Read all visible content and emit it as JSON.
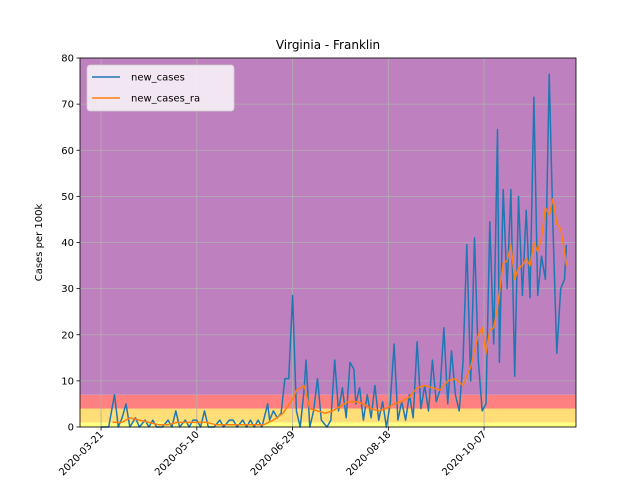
{
  "chart_data": {
    "type": "line",
    "title": "Virginia - Franklin",
    "xlabel": "",
    "ylabel": "Cases per 100k",
    "x_start": "2020-03-10",
    "x_end": "2020-11-24",
    "xlim": [
      "2020-03-10",
      "2020-11-24"
    ],
    "ylim": [
      0,
      80
    ],
    "grid": true,
    "legend_position": "top-left",
    "y_ticks": [
      "0",
      "10",
      "20",
      "30",
      "40",
      "50",
      "60",
      "70",
      "80"
    ],
    "x_ticks": [
      {
        "date": "2020-03-21",
        "label": "2020-03-21"
      },
      {
        "date": "2020-05-10",
        "label": "2020-05-10"
      },
      {
        "date": "2020-06-29",
        "label": "2020-06-29"
      },
      {
        "date": "2020-08-18",
        "label": "2020-08-18"
      },
      {
        "date": "2020-10-07",
        "label": "2020-10-07"
      }
    ],
    "bands": [
      {
        "y0": 0,
        "y1": 1,
        "color": "#ffff80"
      },
      {
        "y0": 1,
        "y1": 4,
        "color": "#ffdd77"
      },
      {
        "y0": 4,
        "y1": 7,
        "color": "#ff8080"
      },
      {
        "y0": 7,
        "y1": 80,
        "color": "#bf80bf"
      }
    ],
    "series": [
      {
        "name": "new_cases",
        "color": "#1f77b4",
        "points": [
          [
            "2020-03-21",
            0
          ],
          [
            "2020-03-25",
            0
          ],
          [
            "2020-03-28",
            7
          ],
          [
            "2020-03-30",
            0
          ],
          [
            "2020-04-01",
            2
          ],
          [
            "2020-04-03",
            5
          ],
          [
            "2020-04-05",
            0
          ],
          [
            "2020-04-08",
            2
          ],
          [
            "2020-04-10",
            0
          ],
          [
            "2020-04-13",
            1.5
          ],
          [
            "2020-04-15",
            0
          ],
          [
            "2020-04-17",
            1.5
          ],
          [
            "2020-04-19",
            0
          ],
          [
            "2020-04-22",
            0
          ],
          [
            "2020-04-25",
            1.5
          ],
          [
            "2020-04-27",
            0
          ],
          [
            "2020-04-29",
            3.5
          ],
          [
            "2020-05-01",
            0
          ],
          [
            "2020-05-04",
            1.5
          ],
          [
            "2020-05-06",
            0
          ],
          [
            "2020-05-08",
            1.5
          ],
          [
            "2020-05-10",
            1.5
          ],
          [
            "2020-05-12",
            0
          ],
          [
            "2020-05-14",
            3.5
          ],
          [
            "2020-05-16",
            0
          ],
          [
            "2020-05-19",
            0
          ],
          [
            "2020-05-22",
            1.5
          ],
          [
            "2020-05-24",
            0
          ],
          [
            "2020-05-27",
            1.5
          ],
          [
            "2020-05-29",
            1.5
          ],
          [
            "2020-05-31",
            0
          ],
          [
            "2020-06-03",
            1.5
          ],
          [
            "2020-06-05",
            0
          ],
          [
            "2020-06-07",
            1.5
          ],
          [
            "2020-06-09",
            0
          ],
          [
            "2020-06-11",
            1.5
          ],
          [
            "2020-06-13",
            0
          ],
          [
            "2020-06-16",
            5
          ],
          [
            "2020-06-17",
            1.5
          ],
          [
            "2020-06-19",
            3.5
          ],
          [
            "2020-06-21",
            2
          ],
          [
            "2020-06-23",
            3
          ],
          [
            "2020-06-25",
            10.5
          ],
          [
            "2020-06-27",
            10.5
          ],
          [
            "2020-06-29",
            28.5
          ],
          [
            "2020-07-01",
            3.5
          ],
          [
            "2020-07-03",
            0
          ],
          [
            "2020-07-05",
            8
          ],
          [
            "2020-07-06",
            14.5
          ],
          [
            "2020-07-08",
            0
          ],
          [
            "2020-07-10",
            3.5
          ],
          [
            "2020-07-12",
            10.5
          ],
          [
            "2020-07-14",
            1.5
          ],
          [
            "2020-07-17",
            0
          ],
          [
            "2020-07-19",
            1.5
          ],
          [
            "2020-07-21",
            14.5
          ],
          [
            "2020-07-23",
            3.5
          ],
          [
            "2020-07-25",
            8.5
          ],
          [
            "2020-07-27",
            2
          ],
          [
            "2020-07-29",
            14
          ],
          [
            "2020-07-31",
            12.5
          ],
          [
            "2020-08-01",
            5
          ],
          [
            "2020-08-03",
            8.5
          ],
          [
            "2020-08-05",
            1.5
          ],
          [
            "2020-08-07",
            7
          ],
          [
            "2020-08-09",
            2
          ],
          [
            "2020-08-11",
            9
          ],
          [
            "2020-08-13",
            1.5
          ],
          [
            "2020-08-15",
            5.5
          ],
          [
            "2020-08-17",
            0
          ],
          [
            "2020-08-19",
            5
          ],
          [
            "2020-08-21",
            18
          ],
          [
            "2020-08-23",
            1.5
          ],
          [
            "2020-08-25",
            5.5
          ],
          [
            "2020-08-27",
            1.5
          ],
          [
            "2020-08-29",
            7
          ],
          [
            "2020-08-31",
            2
          ],
          [
            "2020-09-02",
            18.5
          ],
          [
            "2020-09-04",
            4
          ],
          [
            "2020-09-06",
            9
          ],
          [
            "2020-09-08",
            3.5
          ],
          [
            "2020-09-10",
            14.5
          ],
          [
            "2020-09-12",
            5.5
          ],
          [
            "2020-09-14",
            8
          ],
          [
            "2020-09-16",
            21.5
          ],
          [
            "2020-09-18",
            5
          ],
          [
            "2020-09-20",
            16.5
          ],
          [
            "2020-09-22",
            7
          ],
          [
            "2020-09-24",
            3.5
          ],
          [
            "2020-09-26",
            14
          ],
          [
            "2020-09-28",
            39.5
          ],
          [
            "2020-09-30",
            10
          ],
          [
            "2020-10-02",
            41
          ],
          [
            "2020-10-04",
            14.5
          ],
          [
            "2020-10-06",
            3.5
          ],
          [
            "2020-10-08",
            5
          ],
          [
            "2020-10-10",
            44.5
          ],
          [
            "2020-10-12",
            18
          ],
          [
            "2020-10-14",
            64.5
          ],
          [
            "2020-10-15",
            14
          ],
          [
            "2020-10-17",
            51.5
          ],
          [
            "2020-10-19",
            30
          ],
          [
            "2020-10-21",
            51.5
          ],
          [
            "2020-10-23",
            11
          ],
          [
            "2020-10-25",
            50
          ],
          [
            "2020-10-27",
            28.5
          ],
          [
            "2020-10-29",
            47
          ],
          [
            "2020-10-31",
            28
          ],
          [
            "2020-11-02",
            71.5
          ],
          [
            "2020-11-04",
            28.5
          ],
          [
            "2020-11-06",
            37
          ],
          [
            "2020-11-08",
            32
          ],
          [
            "2020-11-10",
            76.5
          ],
          [
            "2020-11-12",
            43
          ],
          [
            "2020-11-14",
            16
          ],
          [
            "2020-11-16",
            30
          ],
          [
            "2020-11-18",
            32
          ],
          [
            "2020-11-19",
            39.5
          ]
        ]
      },
      {
        "name": "new_cases_ra",
        "color": "#ff7f0e",
        "points": [
          [
            "2020-03-27",
            1
          ],
          [
            "2020-04-01",
            1
          ],
          [
            "2020-04-05",
            2
          ],
          [
            "2020-04-10",
            1.5
          ],
          [
            "2020-04-15",
            1
          ],
          [
            "2020-04-20",
            0.5
          ],
          [
            "2020-04-25",
            0.5
          ],
          [
            "2020-04-30",
            1
          ],
          [
            "2020-05-05",
            1
          ],
          [
            "2020-05-10",
            1
          ],
          [
            "2020-05-15",
            1
          ],
          [
            "2020-05-20",
            0.5
          ],
          [
            "2020-05-25",
            0.5
          ],
          [
            "2020-05-30",
            0.5
          ],
          [
            "2020-06-04",
            0.5
          ],
          [
            "2020-06-09",
            0.5
          ],
          [
            "2020-06-14",
            0.5
          ],
          [
            "2020-06-19",
            1.5
          ],
          [
            "2020-06-24",
            3
          ],
          [
            "2020-06-29",
            6
          ],
          [
            "2020-07-01",
            8
          ],
          [
            "2020-07-05",
            9
          ],
          [
            "2020-07-08",
            4
          ],
          [
            "2020-07-12",
            3.5
          ],
          [
            "2020-07-16",
            3
          ],
          [
            "2020-07-20",
            3.5
          ],
          [
            "2020-07-24",
            4.5
          ],
          [
            "2020-07-28",
            5.5
          ],
          [
            "2020-08-01",
            5.5
          ],
          [
            "2020-08-05",
            5
          ],
          [
            "2020-08-09",
            4
          ],
          [
            "2020-08-13",
            3.5
          ],
          [
            "2020-08-17",
            4
          ],
          [
            "2020-08-21",
            5
          ],
          [
            "2020-08-25",
            5.5
          ],
          [
            "2020-08-29",
            6.5
          ],
          [
            "2020-09-02",
            8.5
          ],
          [
            "2020-09-06",
            9
          ],
          [
            "2020-09-10",
            8.5
          ],
          [
            "2020-09-14",
            8
          ],
          [
            "2020-09-18",
            10
          ],
          [
            "2020-09-22",
            10.5
          ],
          [
            "2020-09-26",
            9
          ],
          [
            "2020-09-30",
            13
          ],
          [
            "2020-10-04",
            20
          ],
          [
            "2020-10-06",
            21.5
          ],
          [
            "2020-10-08",
            16
          ],
          [
            "2020-10-10",
            21
          ],
          [
            "2020-10-12",
            21.5
          ],
          [
            "2020-10-14",
            26
          ],
          [
            "2020-10-17",
            35.5
          ],
          [
            "2020-10-19",
            36
          ],
          [
            "2020-10-21",
            39.5
          ],
          [
            "2020-10-23",
            32
          ],
          [
            "2020-10-25",
            34.5
          ],
          [
            "2020-10-27",
            35
          ],
          [
            "2020-10-29",
            36.5
          ],
          [
            "2020-10-31",
            35
          ],
          [
            "2020-11-02",
            40
          ],
          [
            "2020-11-04",
            38
          ],
          [
            "2020-11-06",
            41
          ],
          [
            "2020-11-08",
            47.5
          ],
          [
            "2020-11-10",
            46
          ],
          [
            "2020-11-12",
            49.5
          ],
          [
            "2020-11-14",
            44
          ],
          [
            "2020-11-16",
            43
          ],
          [
            "2020-11-18",
            38
          ],
          [
            "2020-11-19",
            35
          ]
        ]
      }
    ]
  }
}
